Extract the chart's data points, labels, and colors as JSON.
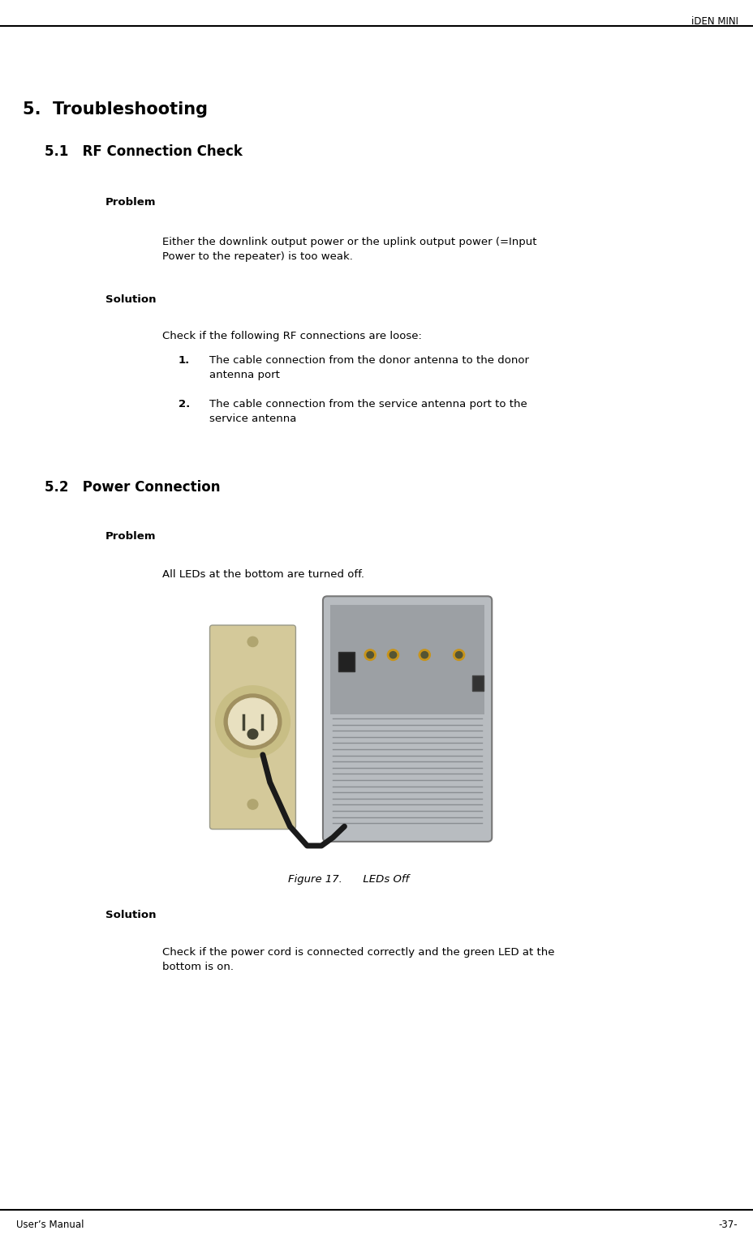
{
  "header_text": "iDEN MINI",
  "footer_left": "User’s Manual",
  "footer_right": "-37-",
  "section_title": "5.  Troubleshooting",
  "sub_title_1": "5.1   RF Connection Check",
  "sub_title_2": "5.2   Power Connection",
  "problem_label_1": "Problem",
  "problem_text_1": "Either the downlink output power or the uplink output power (=Input\nPower to the repeater) is too weak.",
  "solution_label_1": "Solution",
  "solution_intro": "Check if the following RF connections are loose:",
  "item1_num": "1.",
  "item1_text": "The cable connection from the donor antenna to the donor\nantenna port",
  "item2_num": "2.",
  "item2_text": "The cable connection from the service antenna port to the\nservice antenna",
  "problem_label_2": "Problem",
  "problem_text_2": "All LEDs at the bottom are turned off.",
  "figure_caption": "Figure 17.      LEDs Off",
  "solution_label_2": "Solution",
  "solution_text_2": "Check if the power cord is connected correctly and the green LED at the\nbottom is on.",
  "bg_color": "#ffffff",
  "text_color": "#000000",
  "header_font_size": 8.5,
  "footer_font_size": 8.5,
  "section_font_size": 15,
  "sub_font_size": 12,
  "label_font_size": 9.5,
  "body_font_size": 9.5
}
